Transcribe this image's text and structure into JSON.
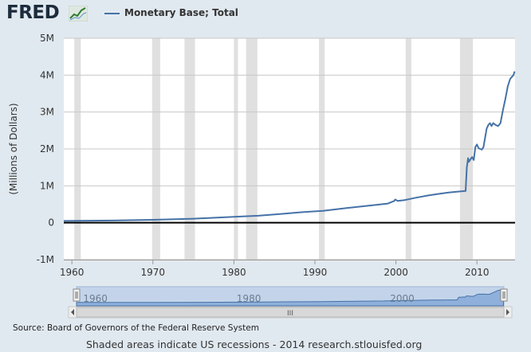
{
  "header": {
    "logo_text": "FRED",
    "logo_icon": "chart-trend-icon"
  },
  "colors": {
    "background": "#e1e9f0",
    "plot_background": "#ffffff",
    "series": "#4572a7",
    "recession": "#e0e0e0",
    "navigator_fill": "#c3d4ea",
    "navigator_series": "#4572a7"
  },
  "chart_data": {
    "type": "line",
    "title": "",
    "xlabel": "",
    "ylabel": "(Millions of Dollars)",
    "xlim": [
      1959,
      2014.7
    ],
    "ylim": [
      -1000000,
      5000000
    ],
    "grid": {
      "horizontal": true,
      "vertical": false
    },
    "legend": {
      "position": "top-left",
      "entries": [
        "Monetary Base; Total"
      ]
    },
    "y_ticks": [
      {
        "value": -1000000,
        "label": "-1M"
      },
      {
        "value": 0,
        "label": "0"
      },
      {
        "value": 1000000,
        "label": "1M"
      },
      {
        "value": 2000000,
        "label": "2M"
      },
      {
        "value": 3000000,
        "label": "3M"
      },
      {
        "value": 4000000,
        "label": "4M"
      },
      {
        "value": 5000000,
        "label": "5M"
      }
    ],
    "x_ticks": [
      {
        "value": 1960,
        "label": "1960"
      },
      {
        "value": 1970,
        "label": "1970"
      },
      {
        "value": 1980,
        "label": "1980"
      },
      {
        "value": 1990,
        "label": "1990"
      },
      {
        "value": 2000,
        "label": "2000"
      },
      {
        "value": 2010,
        "label": "2010"
      }
    ],
    "recessions": [
      [
        1960.3,
        1961.1
      ],
      [
        1969.9,
        1970.9
      ],
      [
        1973.9,
        1975.2
      ],
      [
        1980.0,
        1980.5
      ],
      [
        1981.5,
        1982.9
      ],
      [
        1990.5,
        1991.2
      ],
      [
        2001.2,
        2001.9
      ],
      [
        2007.9,
        2009.5
      ]
    ],
    "series": [
      {
        "name": "Monetary Base; Total",
        "x": [
          1959,
          1965,
          1970,
          1975,
          1980,
          1983,
          1986,
          1988,
          1991,
          1994,
          1997,
          1999.0,
          1999.8,
          1999.9,
          2000.2,
          2001.0,
          2002.5,
          2004.0,
          2005.5,
          2006.5,
          2007.5,
          2008.6,
          2008.75,
          2008.9,
          2009.0,
          2009.2,
          2009.4,
          2009.6,
          2009.8,
          2010.0,
          2010.2,
          2010.4,
          2010.6,
          2010.8,
          2011.0,
          2011.2,
          2011.4,
          2011.6,
          2011.8,
          2012.0,
          2012.3,
          2012.6,
          2012.9,
          2013.2,
          2013.5,
          2013.8,
          2014.1,
          2014.3,
          2014.5,
          2014.65
        ],
        "values": [
          50000,
          60000,
          80000,
          110000,
          160000,
          190000,
          240000,
          280000,
          320000,
          400000,
          470000,
          520000,
          590000,
          630000,
          590000,
          610000,
          680000,
          740000,
          790000,
          820000,
          840000,
          860000,
          1500000,
          1750000,
          1650000,
          1720000,
          1780000,
          1700000,
          2050000,
          2120000,
          2020000,
          2000000,
          1980000,
          2050000,
          2300000,
          2550000,
          2650000,
          2700000,
          2620000,
          2700000,
          2650000,
          2620000,
          2700000,
          3050000,
          3350000,
          3700000,
          3900000,
          3950000,
          4000000,
          4100000
        ]
      }
    ],
    "navigator": {
      "ticks": [
        {
          "value": 1960,
          "label": "1960"
        },
        {
          "value": 1980,
          "label": "1980"
        },
        {
          "value": 2000,
          "label": "2000"
        }
      ],
      "scroll_grip": "III"
    }
  },
  "footer": {
    "source": "Source: Board of Governors of the Federal Reserve System",
    "note": "Shaded areas indicate US recessions - 2014 research.stlouisfed.org"
  }
}
